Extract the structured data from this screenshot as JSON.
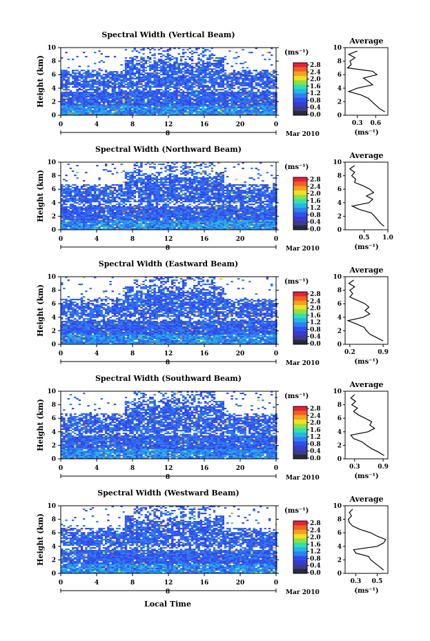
{
  "figure": {
    "xlabel": "Local Time",
    "date_label": "Mar 2010",
    "day_label": "8",
    "ylabel": "Height (km)",
    "unit_label": "(ms⁻¹)",
    "avg_title": "Average",
    "avg_xlabel": "(ms⁻¹)"
  },
  "colorbar": {
    "ticks": [
      "2.8",
      "2.4",
      "2.0",
      "1.6",
      "1.2",
      "0.8",
      "0.4",
      "0.0"
    ],
    "colors": [
      "#e8203c",
      "#f06020",
      "#f5a020",
      "#f0e020",
      "#90e040",
      "#30e0b0",
      "#20b8e8",
      "#3080f0",
      "#3050e8",
      "#3a3ad0",
      "#3c3c8c",
      "#2a2a3a"
    ]
  },
  "chart_data": [
    {
      "type": "heatmap",
      "title": "Spectral Width (Vertical Beam)",
      "x_ticks": [
        "0",
        "4",
        "8",
        "12",
        "16",
        "20",
        "0"
      ],
      "xlim": [
        0,
        24
      ],
      "y_ticks": [
        "0",
        "2",
        "4",
        "6",
        "8",
        "10"
      ],
      "ylim": [
        0,
        10
      ],
      "value_range": [
        0.0,
        3.0
      ],
      "average": {
        "x_ticks": [
          "0.3",
          "0.6"
        ],
        "xlim": [
          0.1,
          0.8
        ],
        "height": [
          0.5,
          1,
          1.5,
          2,
          2.5,
          3,
          3.5,
          4,
          4.5,
          5,
          5.5,
          6,
          6.5,
          7,
          7.5,
          8,
          8.5,
          9,
          9.5
        ],
        "width": [
          0.75,
          0.66,
          0.6,
          0.54,
          0.48,
          0.36,
          0.16,
          0.3,
          0.55,
          0.48,
          0.4,
          0.62,
          0.55,
          0.14,
          0.2,
          0.18,
          0.26,
          0.16,
          0.3
        ]
      }
    },
    {
      "type": "heatmap",
      "title": "Spectral Width (Northward Beam)",
      "x_ticks": [
        "0",
        "4",
        "8",
        "12",
        "16",
        "20",
        "0"
      ],
      "xlim": [
        0,
        24
      ],
      "y_ticks": [
        "0",
        "2",
        "4",
        "6",
        "8",
        "10"
      ],
      "ylim": [
        0,
        10
      ],
      "value_range": [
        0.0,
        3.0
      ],
      "average": {
        "x_ticks": [
          "0.5",
          "1.0"
        ],
        "xlim": [
          0.1,
          1.0
        ],
        "height": [
          0.5,
          1,
          1.5,
          2,
          2.5,
          3,
          3.5,
          4,
          4.5,
          5,
          5.5,
          6,
          6.5,
          7,
          7.5,
          8,
          8.5,
          9,
          9.5
        ],
        "width": [
          0.92,
          0.84,
          0.78,
          0.72,
          0.65,
          0.4,
          0.25,
          0.6,
          0.68,
          0.55,
          0.7,
          0.62,
          0.48,
          0.3,
          0.32,
          0.24,
          0.3,
          0.2,
          0.3
        ]
      }
    },
    {
      "type": "heatmap",
      "title": "Spectral Width (Eastward Beam)",
      "x_ticks": [
        "0",
        "4",
        "8",
        "12",
        "16",
        "20",
        "0"
      ],
      "xlim": [
        0,
        24
      ],
      "y_ticks": [
        "0",
        "2",
        "4",
        "6",
        "8",
        "10"
      ],
      "ylim": [
        0,
        10
      ],
      "value_range": [
        0.0,
        3.0
      ],
      "average": {
        "x_ticks": [
          "0.2",
          "0.9"
        ],
        "xlim": [
          0.1,
          1.0
        ],
        "height": [
          0.5,
          1,
          1.5,
          2,
          2.5,
          3,
          3.5,
          4,
          4.5,
          5,
          5.5,
          6,
          6.5,
          7,
          7.5,
          8,
          8.5,
          9,
          9.5
        ],
        "width": [
          0.9,
          0.76,
          0.62,
          0.55,
          0.5,
          0.34,
          0.16,
          0.48,
          0.62,
          0.52,
          0.6,
          0.52,
          0.36,
          0.2,
          0.26,
          0.2,
          0.3,
          0.18,
          0.28
        ]
      }
    },
    {
      "type": "heatmap",
      "title": "Spectral Width (Southward Beam)",
      "x_ticks": [
        "0",
        "4",
        "8",
        "12",
        "16",
        "20",
        "0"
      ],
      "xlim": [
        0,
        24
      ],
      "y_ticks": [
        "0",
        "2",
        "4",
        "6",
        "8",
        "10"
      ],
      "ylim": [
        0,
        10
      ],
      "value_range": [
        0.0,
        3.0
      ],
      "average": {
        "x_ticks": [
          "0.3",
          "0.9"
        ],
        "xlim": [
          0.1,
          1.0
        ],
        "height": [
          0.5,
          1,
          1.5,
          2,
          2.5,
          3,
          3.5,
          4,
          4.5,
          5,
          5.5,
          6,
          6.5,
          7,
          7.5,
          8,
          8.5,
          9,
          9.5
        ],
        "width": [
          0.92,
          0.8,
          0.66,
          0.55,
          0.46,
          0.28,
          0.22,
          0.58,
          0.72,
          0.62,
          0.66,
          0.52,
          0.38,
          0.28,
          0.36,
          0.24,
          0.32,
          0.22,
          0.3
        ]
      }
    },
    {
      "type": "heatmap",
      "title": "Spectral Width (Westward Beam)",
      "x_ticks": [
        "0",
        "4",
        "8",
        "12",
        "16",
        "20",
        "0"
      ],
      "xlim": [
        0,
        24
      ],
      "y_ticks": [
        "0",
        "2",
        "4",
        "6",
        "8",
        "10"
      ],
      "ylim": [
        0,
        10
      ],
      "value_range": [
        0.0,
        3.0
      ],
      "average": {
        "x_ticks": [
          "0.3",
          "0.5"
        ],
        "xlim": [
          0.2,
          0.6
        ],
        "height": [
          0.5,
          1,
          1.5,
          2,
          2.5,
          3,
          3.5,
          4,
          4.5,
          5,
          5.5,
          6,
          6.5,
          7,
          7.5,
          8,
          8.5,
          9,
          9.5
        ],
        "width": [
          0.56,
          0.52,
          0.48,
          0.44,
          0.42,
          0.3,
          0.28,
          0.5,
          0.56,
          0.58,
          0.5,
          0.44,
          0.34,
          0.27,
          0.24,
          0.23,
          0.26,
          0.24,
          0.27
        ]
      }
    }
  ]
}
